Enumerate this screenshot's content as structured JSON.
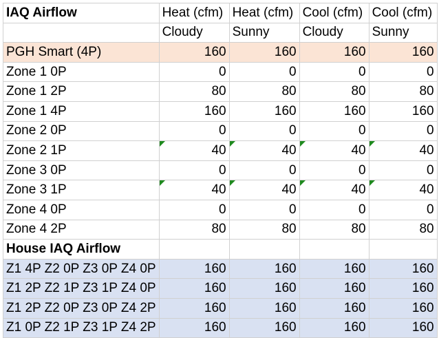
{
  "header": {
    "title": "IAQ Airflow",
    "columns": [
      {
        "line1": "Heat (cfm)",
        "line2": "Cloudy"
      },
      {
        "line1": "Heat (cfm)",
        "line2": "Sunny"
      },
      {
        "line1": "Cool (cfm)",
        "line2": "Cloudy"
      },
      {
        "line1": "Cool (cfm)",
        "line2": "Sunny"
      }
    ]
  },
  "smart_row": {
    "label": "PGH Smart (4P)",
    "values": [
      "160",
      "160",
      "160",
      "160"
    ]
  },
  "zone_rows": [
    {
      "label": "Zone 1 0P",
      "values": [
        "0",
        "0",
        "0",
        "0"
      ],
      "flagged": false
    },
    {
      "label": "Zone 1 2P",
      "values": [
        "80",
        "80",
        "80",
        "80"
      ],
      "flagged": false
    },
    {
      "label": "Zone 1 4P",
      "values": [
        "160",
        "160",
        "160",
        "160"
      ],
      "flagged": false
    },
    {
      "label": "Zone 2 0P",
      "values": [
        "0",
        "0",
        "0",
        "0"
      ],
      "flagged": false
    },
    {
      "label": "Zone 2 1P",
      "values": [
        "40",
        "40",
        "40",
        "40"
      ],
      "flagged": true
    },
    {
      "label": "Zone 3 0P",
      "values": [
        "0",
        "0",
        "0",
        "0"
      ],
      "flagged": false
    },
    {
      "label": "Zone 3 1P",
      "values": [
        "40",
        "40",
        "40",
        "40"
      ],
      "flagged": true
    },
    {
      "label": "Zone 4 0P",
      "values": [
        "0",
        "0",
        "0",
        "0"
      ],
      "flagged": false
    },
    {
      "label": "Zone 4 2P",
      "values": [
        "80",
        "80",
        "80",
        "80"
      ],
      "flagged": false
    }
  ],
  "house_section": {
    "title": "House IAQ Airflow"
  },
  "house_rows": [
    {
      "label": "Z1 4P Z2 0P Z3 0P Z4 0P",
      "values": [
        "160",
        "160",
        "160",
        "160"
      ]
    },
    {
      "label": "Z1 2P Z2 1P Z3 1P Z4 0P",
      "values": [
        "160",
        "160",
        "160",
        "160"
      ]
    },
    {
      "label": "Z1 2P Z2 0P Z3 0P Z4 2P",
      "values": [
        "160",
        "160",
        "160",
        "160"
      ]
    },
    {
      "label": "Z1 0P Z2 1P Z3 1P Z4 2P",
      "values": [
        "160",
        "160",
        "160",
        "160"
      ]
    }
  ],
  "colors": {
    "smart_row_fill": "#fbe4d5",
    "house_row_fill": "#d9e1f2",
    "comment_flag": "#1e8a1e",
    "gridline": "#d0d0d0"
  }
}
